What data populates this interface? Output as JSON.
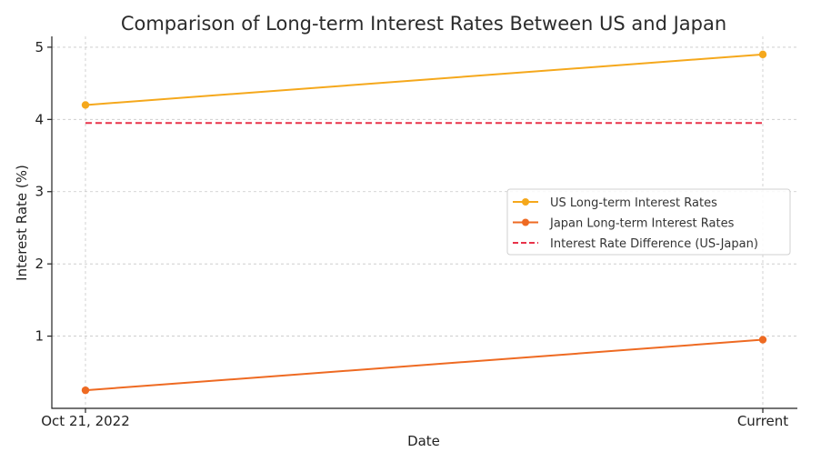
{
  "chart_data": {
    "type": "line",
    "title": "Comparison of Long-term Interest Rates Between US and Japan",
    "xlabel": "Date",
    "ylabel": "Interest Rate (%)",
    "categories": [
      "Oct 21, 2022",
      "Current"
    ],
    "y_ticks": [
      1,
      2,
      3,
      4,
      5
    ],
    "ylim": [
      0,
      5.15
    ],
    "grid": true,
    "legend_position": "center-right",
    "series": [
      {
        "name": "US Long-term Interest Rates",
        "values": [
          4.2,
          4.9
        ],
        "color": "#f5a81c",
        "style": "solid",
        "marker": "circle"
      },
      {
        "name": "Japan Long-term Interest Rates",
        "values": [
          0.25,
          0.95
        ],
        "color": "#ee6a22",
        "style": "solid",
        "marker": "circle"
      },
      {
        "name": "Interest Rate Difference (US-Japan)",
        "values": [
          3.95,
          3.95
        ],
        "color": "#e8334a",
        "style": "dashed",
        "marker": "none"
      }
    ]
  }
}
